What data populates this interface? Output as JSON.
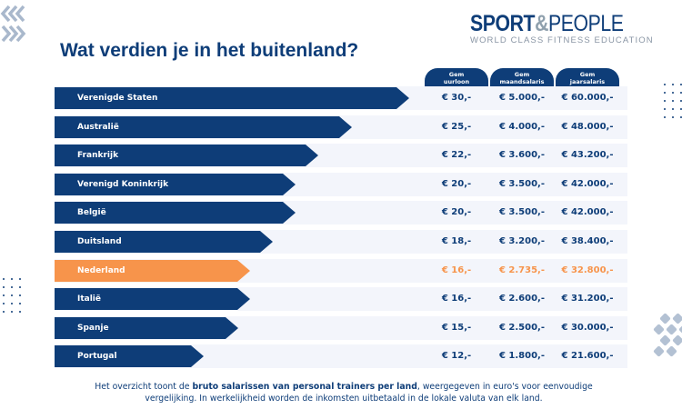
{
  "header": {
    "title": "Wat verdien je in het buitenland?"
  },
  "logo": {
    "main_left": "SPORT",
    "amp": "&",
    "main_right": "PEOPLE",
    "tagline": "WORLD CLASS FITNESS EDUCATION"
  },
  "colors": {
    "primary": "#0e3d78",
    "highlight": "#f7944b",
    "row_bg": "#f3f5fb"
  },
  "chart_data": {
    "type": "bar",
    "orientation": "horizontal",
    "columns": [
      {
        "line1": "Gem",
        "line2": "uurloon"
      },
      {
        "line1": "Gem",
        "line2": "maandsalaris"
      },
      {
        "line1": "Gem",
        "line2": "jaarsalaris"
      }
    ],
    "rows": [
      {
        "country": "Verenigde Staten",
        "hourly": 30,
        "hourly_label": "€ 30,-",
        "monthly_label": "€ 5.000,-",
        "yearly_label": "€ 60.000,-",
        "highlight": false
      },
      {
        "country": "Australië",
        "hourly": 25,
        "hourly_label": "€ 25,-",
        "monthly_label": "€ 4.000,-",
        "yearly_label": "€ 48.000,-",
        "highlight": false
      },
      {
        "country": "Frankrijk",
        "hourly": 22,
        "hourly_label": "€ 22,-",
        "monthly_label": "€ 3.600,-",
        "yearly_label": "€ 43.200,-",
        "highlight": false
      },
      {
        "country": "Verenigd Koninkrijk",
        "hourly": 20,
        "hourly_label": "€ 20,-",
        "monthly_label": "€ 3.500,-",
        "yearly_label": "€ 42.000,-",
        "highlight": false
      },
      {
        "country": "België",
        "hourly": 20,
        "hourly_label": "€ 20,-",
        "monthly_label": "€ 3.500,-",
        "yearly_label": "€ 42.000,-",
        "highlight": false
      },
      {
        "country": "Duitsland",
        "hourly": 18,
        "hourly_label": "€ 18,-",
        "monthly_label": "€ 3.200,-",
        "yearly_label": "€ 38.400,-",
        "highlight": false
      },
      {
        "country": "Nederland",
        "hourly": 16,
        "hourly_label": "€ 16,-",
        "monthly_label": "€ 2.735,-",
        "yearly_label": "€ 32.800,-",
        "highlight": true
      },
      {
        "country": "Italië",
        "hourly": 16,
        "hourly_label": "€ 16,-",
        "monthly_label": "€ 2.600,-",
        "yearly_label": "€ 31.200,-",
        "highlight": false
      },
      {
        "country": "Spanje",
        "hourly": 15,
        "hourly_label": "€ 15,-",
        "monthly_label": "€ 2.500,-",
        "yearly_label": "€ 30.000,-",
        "highlight": false
      },
      {
        "country": "Portugal",
        "hourly": 12,
        "hourly_label": "€ 12,-",
        "monthly_label": "€ 1.800,-",
        "yearly_label": "€ 21.600,-",
        "highlight": false
      }
    ]
  },
  "footer": {
    "part1": "Het overzicht toont de ",
    "bold": "bruto salarissen van personal trainers per land",
    "part2": ", weergegeven in euro's voor eenvoudige vergelijking. In werkelijkheid worden de inkomsten uitbetaald in de lokale valuta van elk land."
  }
}
